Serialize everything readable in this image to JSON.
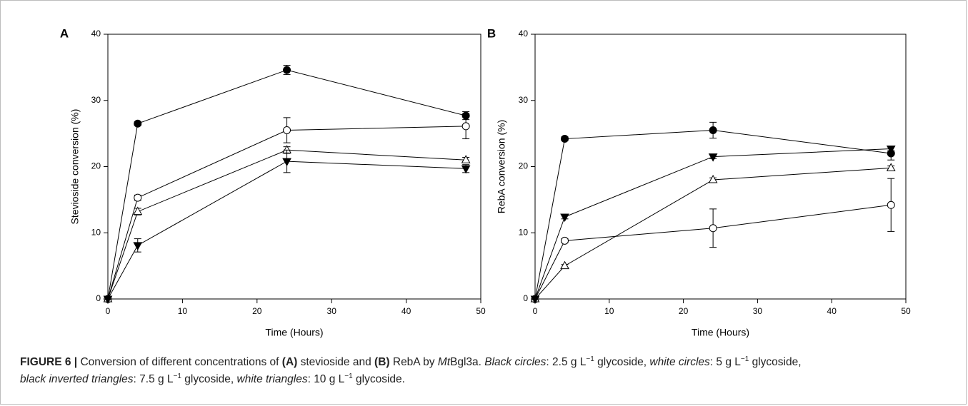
{
  "chart_data": [
    {
      "type": "line",
      "panel_label": "A",
      "xlabel": "Time (Hours)",
      "ylabel": "Stevioside conversion (%)",
      "xlim": [
        0,
        50
      ],
      "ylim": [
        0,
        40
      ],
      "xticks": [
        "0",
        "10",
        "20",
        "30",
        "40",
        "50"
      ],
      "yticks": [
        "0",
        "10",
        "20",
        "30",
        "40"
      ],
      "x": [
        0,
        4,
        24,
        48
      ],
      "grid": false,
      "series": [
        {
          "marker": "filled-circle",
          "values": [
            0,
            26.5,
            34.6,
            27.7
          ],
          "errors": [
            0,
            0.3,
            0.7,
            0.6
          ]
        },
        {
          "marker": "open-circle",
          "values": [
            0,
            15.3,
            25.5,
            26.1
          ],
          "errors": [
            0,
            0.4,
            1.9,
            1.9
          ]
        },
        {
          "marker": "open-triangle",
          "values": [
            0,
            13.2,
            22.5,
            21.0
          ],
          "errors": [
            0,
            0.5,
            0.5,
            0.4
          ]
        },
        {
          "marker": "filled-inverted-triangle",
          "values": [
            0,
            8.1,
            20.8,
            19.7
          ],
          "errors": [
            0,
            1.0,
            1.7,
            0.6
          ]
        }
      ]
    },
    {
      "type": "line",
      "panel_label": "B",
      "xlabel": "Time (Hours)",
      "ylabel": "RebA conversion (%)",
      "xlim": [
        0,
        50
      ],
      "ylim": [
        0,
        40
      ],
      "xticks": [
        "0",
        "10",
        "20",
        "30",
        "40",
        "50"
      ],
      "yticks": [
        "0",
        "10",
        "20",
        "30",
        "40"
      ],
      "x": [
        0,
        4,
        24,
        48
      ],
      "grid": false,
      "series": [
        {
          "marker": "filled-circle",
          "values": [
            0,
            24.2,
            25.5,
            22.0
          ],
          "errors": [
            0,
            0.3,
            1.2,
            1.0
          ]
        },
        {
          "marker": "open-circle",
          "values": [
            0,
            8.8,
            10.7,
            14.2
          ],
          "errors": [
            0,
            0.3,
            2.9,
            4.0
          ]
        },
        {
          "marker": "open-triangle",
          "values": [
            0,
            5.0,
            18.0,
            19.8
          ],
          "errors": [
            0,
            0.2,
            0.3,
            0.3
          ]
        },
        {
          "marker": "filled-inverted-triangle",
          "values": [
            0,
            12.4,
            21.5,
            22.7
          ],
          "errors": [
            0,
            0.3,
            0.3,
            0.3
          ]
        }
      ]
    }
  ],
  "caption": {
    "figure_label": "FIGURE 6 |",
    "t1": " Conversion of different concentrations of ",
    "a": "(A)",
    "t2": " stevioside and ",
    "b": "(B)",
    "t3": " RebA by ",
    "enzyme_italic": "Mt",
    "enzyme_rest": "Bgl3a. ",
    "black_circles": "Black circles",
    "bc_text_pre": ": 2.5 g L",
    "bc_text_post": " glycoside, ",
    "white_circles": "white circles",
    "wc_text_pre": ": 5 g L",
    "wc_text_post": " glycoside,",
    "black_triangles": "black inverted triangles",
    "bt_text_pre": ": 7.5 g L",
    "bt_text_post": " glycoside, ",
    "white_triangles": "white triangles",
    "wt_text_pre": ": 10 g L",
    "wt_text_post": " glycoside.",
    "exponent": "−1"
  }
}
